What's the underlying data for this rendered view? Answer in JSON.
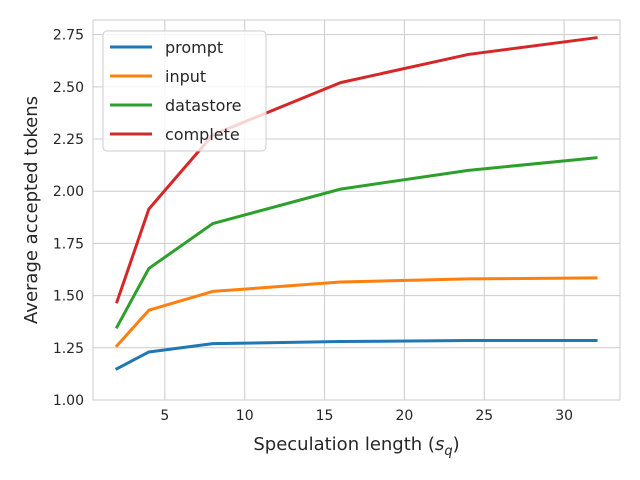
{
  "chart_data": {
    "type": "line",
    "xlabel": "Speculation length",
    "xlabel_symbol": "s",
    "xlabel_subscript": "q",
    "ylabel": "Average accepted tokens",
    "xlim": [
      0.5,
      33.5
    ],
    "ylim": [
      1.0,
      2.82
    ],
    "xticks": [
      5,
      10,
      15,
      20,
      25,
      30
    ],
    "yticks": [
      1.0,
      1.25,
      1.5,
      1.75,
      2.0,
      2.25,
      2.5,
      2.75
    ],
    "xtick_labels": [
      "5",
      "10",
      "15",
      "20",
      "25",
      "30"
    ],
    "ytick_labels": [
      "1.00",
      "1.25",
      "1.50",
      "1.75",
      "2.00",
      "2.25",
      "2.50",
      "2.75"
    ],
    "grid": true,
    "legend_position": "top-left",
    "x": [
      2,
      4,
      8,
      16,
      24,
      32
    ],
    "series": [
      {
        "name": "prompt",
        "color": "#1f77b4",
        "values": [
          1.15,
          1.23,
          1.27,
          1.28,
          1.285,
          1.285
        ]
      },
      {
        "name": "input",
        "color": "#ff7f0e",
        "values": [
          1.26,
          1.43,
          1.52,
          1.565,
          1.58,
          1.585
        ]
      },
      {
        "name": "datastore",
        "color": "#2ca02c",
        "values": [
          1.35,
          1.63,
          1.845,
          2.01,
          2.1,
          2.16
        ]
      },
      {
        "name": "complete",
        "color": "#d62728",
        "values": [
          1.47,
          1.915,
          2.27,
          2.52,
          2.655,
          2.735
        ]
      }
    ]
  }
}
